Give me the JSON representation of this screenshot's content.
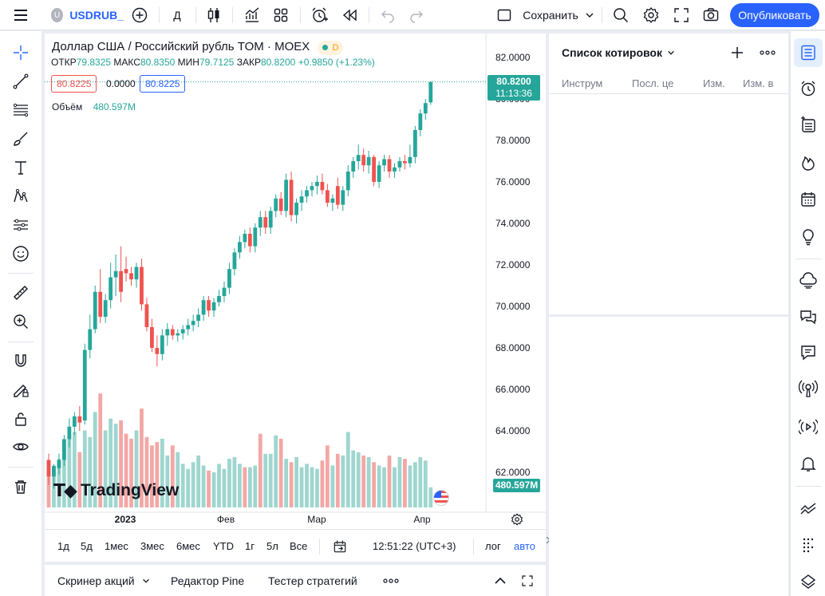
{
  "topbar": {
    "symbol": "USDRUB_",
    "symbol_badge": "U",
    "interval": "Д",
    "save_label": "Сохранить",
    "publish_label": "Опубликовать"
  },
  "chart": {
    "title": "Доллар США / Российский рубль TOM · MOEX",
    "badge": "D",
    "ohlc": {
      "open_label": "ОТКР",
      "open": "79.8325",
      "high_label": "МАКС",
      "high": "80.8350",
      "low_label": "МИН",
      "low": "79.7125",
      "close_label": "ЗАКР",
      "close": "80.8200",
      "change": "+0.9850 (+1.23%)"
    },
    "bid": "80.8225",
    "spread": "0.0000",
    "ask": "80.8225",
    "volume_label": "Объём",
    "volume_value": "480.597M",
    "last_price": "80.8200",
    "countdown": "11:13:36",
    "volume_tag": "480.597M",
    "watermark": "TradingView",
    "price_ticks": [
      "82.0000",
      "80.0000",
      "78.0000",
      "76.0000",
      "74.0000",
      "72.0000",
      "70.0000",
      "68.0000",
      "66.0000",
      "64.0000",
      "62.0000"
    ],
    "time_ticks": [
      "2023",
      "Фев",
      "Мар",
      "Апр"
    ],
    "colors": {
      "up": "#26a69a",
      "down": "#ef5350",
      "up_vol": "#9fd6cf",
      "down_vol": "#f2a8a6",
      "accent": "#2962ff"
    }
  },
  "chart_data": {
    "type": "candlestick",
    "title": "Доллар США / Российский рубль TOM · MOEX",
    "ylim": [
      60.5,
      82.5
    ],
    "x_ticks": [
      "2023",
      "Фев",
      "Мар",
      "Апр"
    ],
    "candles": [
      {
        "o": 62.6,
        "h": 62.9,
        "l": 61.4,
        "c": 61.8
      },
      {
        "o": 61.8,
        "h": 62.4,
        "l": 61.2,
        "c": 62.3
      },
      {
        "o": 62.2,
        "h": 62.9,
        "l": 61.9,
        "c": 62.6
      },
      {
        "o": 62.6,
        "h": 63.8,
        "l": 62.3,
        "c": 63.6
      },
      {
        "o": 63.6,
        "h": 64.6,
        "l": 63.2,
        "c": 64.2
      },
      {
        "o": 64.2,
        "h": 64.9,
        "l": 63.8,
        "c": 64.7
      },
      {
        "o": 64.7,
        "h": 65.2,
        "l": 64.0,
        "c": 64.4
      },
      {
        "o": 64.5,
        "h": 68.2,
        "l": 64.3,
        "c": 67.9
      },
      {
        "o": 67.9,
        "h": 69.6,
        "l": 67.5,
        "c": 68.9
      },
      {
        "o": 68.9,
        "h": 71.0,
        "l": 68.7,
        "c": 70.7
      },
      {
        "o": 70.7,
        "h": 71.8,
        "l": 69.2,
        "c": 69.5
      },
      {
        "o": 69.5,
        "h": 70.6,
        "l": 69.2,
        "c": 70.3
      },
      {
        "o": 70.3,
        "h": 72.1,
        "l": 69.9,
        "c": 71.4
      },
      {
        "o": 71.4,
        "h": 72.5,
        "l": 70.5,
        "c": 71.7
      },
      {
        "o": 71.7,
        "h": 72.9,
        "l": 70.2,
        "c": 70.7
      },
      {
        "o": 71.8,
        "h": 72.4,
        "l": 71.2,
        "c": 71.6
      },
      {
        "o": 71.6,
        "h": 71.9,
        "l": 71.0,
        "c": 71.3
      },
      {
        "o": 71.3,
        "h": 72.1,
        "l": 70.9,
        "c": 71.9
      },
      {
        "o": 71.9,
        "h": 72.3,
        "l": 69.8,
        "c": 70.1
      },
      {
        "o": 70.1,
        "h": 70.4,
        "l": 68.8,
        "c": 69.0
      },
      {
        "o": 69.0,
        "h": 69.4,
        "l": 67.8,
        "c": 68.0
      },
      {
        "o": 68.0,
        "h": 68.6,
        "l": 67.1,
        "c": 67.7
      },
      {
        "o": 67.7,
        "h": 68.9,
        "l": 67.4,
        "c": 68.6
      },
      {
        "o": 68.6,
        "h": 69.2,
        "l": 68.1,
        "c": 68.9
      },
      {
        "o": 68.9,
        "h": 69.1,
        "l": 68.4,
        "c": 68.6
      },
      {
        "o": 68.6,
        "h": 68.9,
        "l": 68.3,
        "c": 68.7
      },
      {
        "o": 68.7,
        "h": 69.1,
        "l": 68.4,
        "c": 68.9
      },
      {
        "o": 68.9,
        "h": 69.4,
        "l": 68.6,
        "c": 69.1
      },
      {
        "o": 69.1,
        "h": 69.6,
        "l": 68.8,
        "c": 69.3
      },
      {
        "o": 69.3,
        "h": 69.9,
        "l": 69.0,
        "c": 69.6
      },
      {
        "o": 69.6,
        "h": 70.5,
        "l": 69.3,
        "c": 70.3
      },
      {
        "o": 70.3,
        "h": 70.5,
        "l": 69.5,
        "c": 69.8
      },
      {
        "o": 69.8,
        "h": 70.4,
        "l": 69.5,
        "c": 70.2
      },
      {
        "o": 70.2,
        "h": 70.8,
        "l": 70.0,
        "c": 70.5
      },
      {
        "o": 70.5,
        "h": 71.2,
        "l": 70.2,
        "c": 70.9
      },
      {
        "o": 70.9,
        "h": 72.1,
        "l": 70.6,
        "c": 71.8
      },
      {
        "o": 71.8,
        "h": 72.8,
        "l": 71.5,
        "c": 72.6
      },
      {
        "o": 72.6,
        "h": 73.4,
        "l": 72.3,
        "c": 73.1
      },
      {
        "o": 73.1,
        "h": 73.7,
        "l": 72.8,
        "c": 73.5
      },
      {
        "o": 73.5,
        "h": 73.8,
        "l": 72.6,
        "c": 72.9
      },
      {
        "o": 72.9,
        "h": 74.0,
        "l": 72.6,
        "c": 73.8
      },
      {
        "o": 73.8,
        "h": 74.6,
        "l": 73.4,
        "c": 74.3
      },
      {
        "o": 74.3,
        "h": 74.6,
        "l": 73.5,
        "c": 73.8
      },
      {
        "o": 73.8,
        "h": 74.8,
        "l": 73.5,
        "c": 74.6
      },
      {
        "o": 74.6,
        "h": 75.4,
        "l": 74.3,
        "c": 75.2
      },
      {
        "o": 75.2,
        "h": 75.5,
        "l": 74.4,
        "c": 74.6
      },
      {
        "o": 74.6,
        "h": 76.4,
        "l": 74.3,
        "c": 76.1
      },
      {
        "o": 76.1,
        "h": 76.5,
        "l": 74.1,
        "c": 74.4
      },
      {
        "o": 74.4,
        "h": 75.2,
        "l": 74.0,
        "c": 75.0
      },
      {
        "o": 75.0,
        "h": 75.6,
        "l": 74.6,
        "c": 75.3
      },
      {
        "o": 75.3,
        "h": 75.8,
        "l": 75.0,
        "c": 75.6
      },
      {
        "o": 75.6,
        "h": 76.0,
        "l": 75.3,
        "c": 75.8
      },
      {
        "o": 75.8,
        "h": 76.3,
        "l": 75.4,
        "c": 76.0
      },
      {
        "o": 76.0,
        "h": 76.4,
        "l": 75.4,
        "c": 75.6
      },
      {
        "o": 75.6,
        "h": 75.9,
        "l": 74.8,
        "c": 75.0
      },
      {
        "o": 75.0,
        "h": 75.4,
        "l": 74.6,
        "c": 75.2
      },
      {
        "o": 75.8,
        "h": 76.2,
        "l": 74.7,
        "c": 74.9
      },
      {
        "o": 74.9,
        "h": 75.8,
        "l": 74.6,
        "c": 75.6
      },
      {
        "o": 75.6,
        "h": 76.8,
        "l": 75.3,
        "c": 76.5
      },
      {
        "o": 76.5,
        "h": 77.2,
        "l": 76.2,
        "c": 77.0
      },
      {
        "o": 77.0,
        "h": 77.8,
        "l": 76.6,
        "c": 77.3
      },
      {
        "o": 77.3,
        "h": 77.6,
        "l": 76.5,
        "c": 76.8
      },
      {
        "o": 76.8,
        "h": 77.5,
        "l": 76.4,
        "c": 77.2
      },
      {
        "o": 77.2,
        "h": 77.3,
        "l": 75.8,
        "c": 76.0
      },
      {
        "o": 76.0,
        "h": 77.0,
        "l": 75.7,
        "c": 76.8
      },
      {
        "o": 76.8,
        "h": 77.3,
        "l": 76.5,
        "c": 77.1
      },
      {
        "o": 77.1,
        "h": 77.3,
        "l": 76.2,
        "c": 76.5
      },
      {
        "o": 76.5,
        "h": 76.9,
        "l": 76.2,
        "c": 76.7
      },
      {
        "o": 76.7,
        "h": 77.2,
        "l": 76.5,
        "c": 77.0
      },
      {
        "o": 77.0,
        "h": 77.3,
        "l": 76.6,
        "c": 76.9
      },
      {
        "o": 76.9,
        "h": 77.8,
        "l": 76.7,
        "c": 77.2
      },
      {
        "o": 77.2,
        "h": 78.7,
        "l": 76.9,
        "c": 78.5
      },
      {
        "o": 78.5,
        "h": 79.5,
        "l": 78.2,
        "c": 79.3
      },
      {
        "o": 79.3,
        "h": 80.0,
        "l": 79.0,
        "c": 79.8
      },
      {
        "o": 79.8325,
        "h": 80.835,
        "l": 79.7125,
        "c": 80.82
      }
    ],
    "volume": [
      {
        "v": 2.8,
        "up": false
      },
      {
        "v": 2.5,
        "up": true
      },
      {
        "v": 2.9,
        "up": true
      },
      {
        "v": 3.6,
        "up": true
      },
      {
        "v": 4.3,
        "up": true
      },
      {
        "v": 4.5,
        "up": true
      },
      {
        "v": 3.3,
        "up": false
      },
      {
        "v": 4.6,
        "up": true
      },
      {
        "v": 4.2,
        "up": true
      },
      {
        "v": 5.7,
        "up": true
      },
      {
        "v": 6.8,
        "up": false
      },
      {
        "v": 4.6,
        "up": true
      },
      {
        "v": 5.3,
        "up": true
      },
      {
        "v": 5.0,
        "up": true
      },
      {
        "v": 5.2,
        "up": false
      },
      {
        "v": 4.4,
        "up": false
      },
      {
        "v": 4.1,
        "up": false
      },
      {
        "v": 4.6,
        "up": true
      },
      {
        "v": 5.9,
        "up": false
      },
      {
        "v": 4.2,
        "up": false
      },
      {
        "v": 3.7,
        "up": false
      },
      {
        "v": 3.9,
        "up": false
      },
      {
        "v": 4.1,
        "up": true
      },
      {
        "v": 3.1,
        "up": true
      },
      {
        "v": 3.7,
        "up": false
      },
      {
        "v": 3.3,
        "up": true
      },
      {
        "v": 2.6,
        "up": true
      },
      {
        "v": 2.3,
        "up": true
      },
      {
        "v": 2.7,
        "up": true
      },
      {
        "v": 3.1,
        "up": true
      },
      {
        "v": 2.5,
        "up": true
      },
      {
        "v": 2.2,
        "up": false
      },
      {
        "v": 2.1,
        "up": true
      },
      {
        "v": 2.6,
        "up": true
      },
      {
        "v": 2.3,
        "up": true
      },
      {
        "v": 2.9,
        "up": true
      },
      {
        "v": 3.0,
        "up": true
      },
      {
        "v": 2.6,
        "up": true
      },
      {
        "v": 2.4,
        "up": false
      },
      {
        "v": 2.4,
        "up": true
      },
      {
        "v": 2.5,
        "up": true
      },
      {
        "v": 4.4,
        "up": false
      },
      {
        "v": 3.2,
        "up": true
      },
      {
        "v": 3.2,
        "up": true
      },
      {
        "v": 4.3,
        "up": true
      },
      {
        "v": 4.1,
        "up": false
      },
      {
        "v": 2.9,
        "up": true
      },
      {
        "v": 2.7,
        "up": false
      },
      {
        "v": 3.0,
        "up": true
      },
      {
        "v": 2.4,
        "up": true
      },
      {
        "v": 2.6,
        "up": true
      },
      {
        "v": 2.4,
        "up": true
      },
      {
        "v": 2.3,
        "up": true
      },
      {
        "v": 2.8,
        "up": false
      },
      {
        "v": 3.7,
        "up": false
      },
      {
        "v": 2.5,
        "up": true
      },
      {
        "v": 3.2,
        "up": false
      },
      {
        "v": 3.1,
        "up": true
      },
      {
        "v": 4.5,
        "up": true
      },
      {
        "v": 3.4,
        "up": true
      },
      {
        "v": 3.3,
        "up": true
      },
      {
        "v": 3.1,
        "up": false
      },
      {
        "v": 3.0,
        "up": true
      },
      {
        "v": 2.7,
        "up": false
      },
      {
        "v": 2.5,
        "up": true
      },
      {
        "v": 2.4,
        "up": true
      },
      {
        "v": 3.1,
        "up": false
      },
      {
        "v": 2.4,
        "up": true
      },
      {
        "v": 3.0,
        "up": true
      },
      {
        "v": 2.9,
        "up": false
      },
      {
        "v": 2.5,
        "up": true
      },
      {
        "v": 2.7,
        "up": true
      },
      {
        "v": 3.0,
        "up": true
      },
      {
        "v": 2.8,
        "up": true
      },
      {
        "v": 1.2,
        "up": true
      }
    ]
  },
  "timebar": {
    "ranges": [
      "1д",
      "5д",
      "1мес",
      "3мес",
      "6мес",
      "YTD",
      "1г",
      "5л",
      "Все"
    ],
    "clock": "12:51:22 (UTC+3)",
    "log": "лог",
    "auto": "авто"
  },
  "bottom_tabs": {
    "screener": "Скринер акций",
    "pine": "Редактор Pine",
    "tester": "Тестер стратегий"
  },
  "watchlist": {
    "title": "Список котировок",
    "columns": [
      "Инструм",
      "Посл. це",
      "Изм.",
      "Изм. в"
    ]
  }
}
